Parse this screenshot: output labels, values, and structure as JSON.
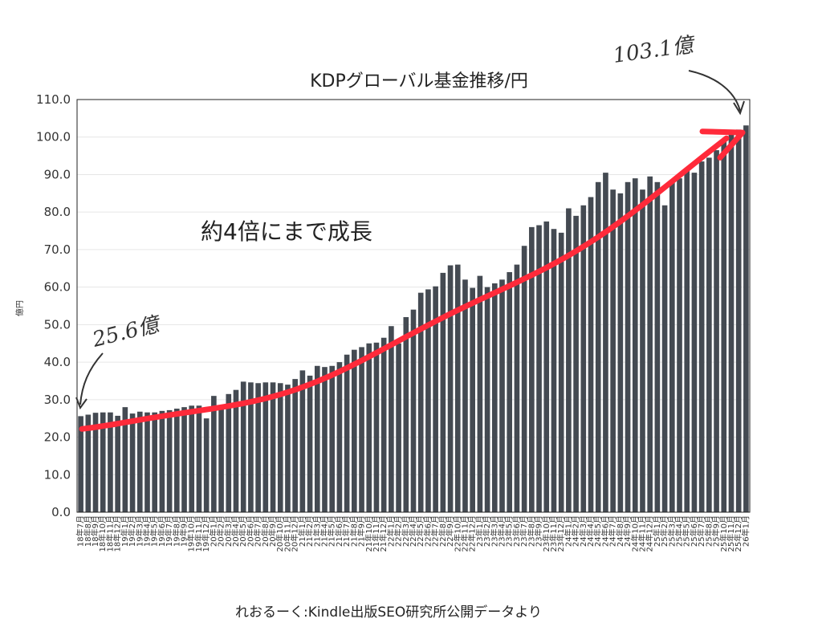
{
  "chart_data": {
    "type": "bar",
    "title": "KDPグローバル基金推移/円",
    "ylabel": "億円",
    "xlabel": "",
    "ylim": [
      0,
      110
    ],
    "yticks": [
      "0.0",
      "10.0",
      "20.0",
      "30.0",
      "40.0",
      "50.0",
      "60.0",
      "70.0",
      "80.0",
      "90.0",
      "100.0",
      "110.0"
    ],
    "grid": true,
    "bar_color": "#444a52",
    "trend_color": "#ff2a3a",
    "categories": [
      "18年7月",
      "18年8月",
      "18年9月",
      "18年10月",
      "18年11月",
      "18年12月",
      "19年1月",
      "19年2月",
      "19年3月",
      "19年4月",
      "19年5月",
      "19年6月",
      "19年7月",
      "19年8月",
      "19年9月",
      "19年10月",
      "19年11月",
      "19年12月",
      "20年1月",
      "20年2月",
      "20年3月",
      "20年4月",
      "20年5月",
      "20年6月",
      "20年7月",
      "20年8月",
      "20年9月",
      "20年10月",
      "20年11月",
      "20年12月",
      "21年1月",
      "21年2月",
      "21年3月",
      "21年4月",
      "21年5月",
      "21年6月",
      "21年7月",
      "21年8月",
      "21年9月",
      "21年10月",
      "21年11月",
      "21年12月",
      "22年1月",
      "22年2月",
      "22年3月",
      "22年4月",
      "22年5月",
      "22年6月",
      "22年7月",
      "22年8月",
      "22年9月",
      "22年10月",
      "22年11月",
      "22年12月",
      "23年1月",
      "23年2月",
      "23年3月",
      "23年4月",
      "23年5月",
      "23年6月",
      "23年7月",
      "23年8月",
      "23年9月",
      "23年10月",
      "23年11月",
      "23年12月",
      "24年1月",
      "24年2月",
      "24年3月",
      "24年4月",
      "24年5月",
      "24年6月",
      "24年7月",
      "24年8月",
      "24年9月",
      "24年10月",
      "24年11月",
      "24年12月",
      "25年1月",
      "25年2月",
      "25年3月",
      "25年4月",
      "25年5月",
      "25年6月",
      "25年7月",
      "25年8月",
      "25年9月",
      "25年10月",
      "25年11月",
      "25年12月",
      "26年1月"
    ],
    "values": [
      25.6,
      26.0,
      26.5,
      26.6,
      26.6,
      25.7,
      28.0,
      26.3,
      26.8,
      26.6,
      26.6,
      27.0,
      27.2,
      27.6,
      28.0,
      28.4,
      28.4,
      25.0,
      31.0,
      28.5,
      31.5,
      32.6,
      34.8,
      34.6,
      34.4,
      34.6,
      34.6,
      34.4,
      34.0,
      35.5,
      37.8,
      36.4,
      39.0,
      38.7,
      39.0,
      40.0,
      42.0,
      43.3,
      44.0,
      45.0,
      45.2,
      46.5,
      49.6,
      45.0,
      52.0,
      54.0,
      58.5,
      59.4,
      60.2,
      63.8,
      65.8,
      66.0,
      62.0,
      59.8,
      63.0,
      60.0,
      61.0,
      62.0,
      64.0,
      66.0,
      71.0,
      76.0,
      76.5,
      77.5,
      75.5,
      74.5,
      81.0,
      79.0,
      81.8,
      84.0,
      88.0,
      90.5,
      86.0,
      85.0,
      88.0,
      89.0,
      86.0,
      89.5,
      88.0,
      81.8,
      88.5,
      89.0,
      91.5,
      90.5,
      93.5,
      94.5,
      96.5,
      99.0,
      101.0,
      102.0,
      103.1
    ],
    "annotations": [
      "約4倍にまで成長",
      "25.6億",
      "103.1億"
    ],
    "source": "れおるーく:Kindle出版SEO研究所公開データより"
  }
}
